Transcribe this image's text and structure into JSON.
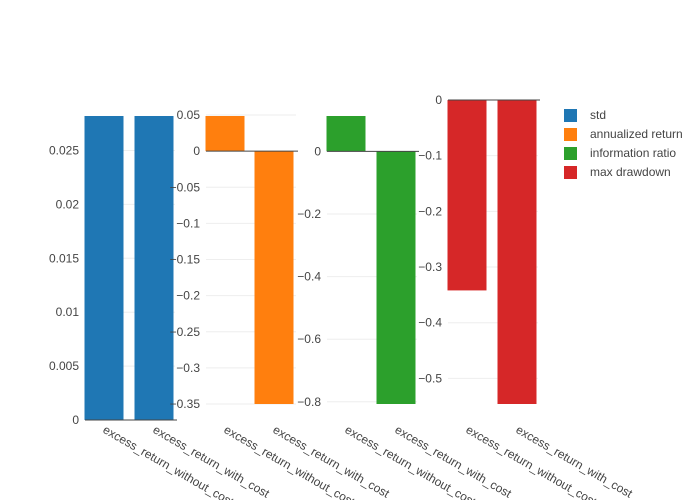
{
  "chart_data": {
    "type": "bar",
    "grid": true,
    "legend_position": "top-right",
    "panels": [
      {
        "series_name": "std",
        "color": "#1f77b4",
        "categories": [
          "excess_return_without_cost",
          "excess_return_with_cost"
        ],
        "values": [
          0.0282,
          0.0282
        ],
        "ylim": [
          0,
          0.0282
        ],
        "yticks": [
          0,
          0.005,
          0.01,
          0.015,
          0.02,
          0.025
        ],
        "ytick_labels": [
          "0",
          "0.005",
          "0.01",
          "0.015",
          "0.02",
          "0.025"
        ]
      },
      {
        "series_name": "annualized return",
        "color": "#ff7f0e",
        "categories": [
          "excess_return_without_cost",
          "excess_return_with_cost"
        ],
        "values": [
          0.0487,
          -0.35
        ],
        "ylim": [
          -0.35,
          0.0487
        ],
        "yticks": [
          0.05,
          0,
          -0.05,
          -0.1,
          -0.15,
          -0.2,
          -0.25,
          -0.3,
          -0.35
        ],
        "ytick_labels": [
          "0.05",
          "0",
          "−0.05",
          "−0.1",
          "−0.15",
          "−0.2",
          "−0.25",
          "−0.3",
          "−0.35"
        ]
      },
      {
        "series_name": "information ratio",
        "color": "#2ca02c",
        "categories": [
          "excess_return_without_cost",
          "excess_return_with_cost"
        ],
        "values": [
          0.113,
          -0.807
        ],
        "ylim": [
          -0.807,
          0.113
        ],
        "yticks": [
          0,
          -0.2,
          -0.4,
          -0.6,
          -0.8
        ],
        "ytick_labels": [
          "0",
          "−0.2",
          "−0.4",
          "−0.6",
          "−0.8"
        ]
      },
      {
        "series_name": "max drawdown",
        "color": "#d62728",
        "categories": [
          "excess_return_without_cost",
          "excess_return_with_cost"
        ],
        "values": [
          -0.342,
          -0.546
        ],
        "ylim": [
          -0.546,
          0
        ],
        "yticks": [
          0,
          -0.1,
          -0.2,
          -0.3,
          -0.4,
          -0.5
        ],
        "ytick_labels": [
          "0",
          "−0.1",
          "−0.2",
          "−0.3",
          "−0.4",
          "−0.5"
        ]
      }
    ],
    "legend": [
      "std",
      "annualized return",
      "information ratio",
      "max drawdown"
    ]
  }
}
